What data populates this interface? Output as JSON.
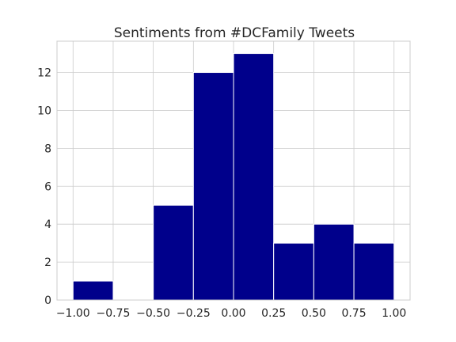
{
  "chart_data": {
    "type": "bar",
    "title": "Sentiments from #DCFamily Tweets",
    "xlabel": "",
    "ylabel": "",
    "bins": [
      {
        "x0": -1.0,
        "x1": -0.75,
        "count": 1
      },
      {
        "x0": -0.75,
        "x1": -0.5,
        "count": 0
      },
      {
        "x0": -0.5,
        "x1": -0.25,
        "count": 5
      },
      {
        "x0": -0.25,
        "x1": 0.0,
        "count": 12
      },
      {
        "x0": 0.0,
        "x1": 0.25,
        "count": 13
      },
      {
        "x0": 0.25,
        "x1": 0.5,
        "count": 3
      },
      {
        "x0": 0.5,
        "x1": 0.75,
        "count": 4
      },
      {
        "x0": 0.75,
        "x1": 1.0,
        "count": 3
      }
    ],
    "xlim": [
      -1.1,
      1.1
    ],
    "ylim": [
      0,
      13.65
    ],
    "x_ticks": [
      -1.0,
      -0.75,
      -0.5,
      -0.25,
      0.0,
      0.25,
      0.5,
      0.75,
      1.0
    ],
    "x_tick_labels": [
      "−1.00",
      "−0.75",
      "−0.50",
      "−0.25",
      "0.00",
      "0.25",
      "0.50",
      "0.75",
      "1.00"
    ],
    "y_ticks": [
      0,
      2,
      4,
      6,
      8,
      10,
      12
    ],
    "y_tick_labels": [
      "0",
      "2",
      "4",
      "6",
      "8",
      "10",
      "12"
    ],
    "grid": true,
    "bar_color": "#00008b"
  }
}
